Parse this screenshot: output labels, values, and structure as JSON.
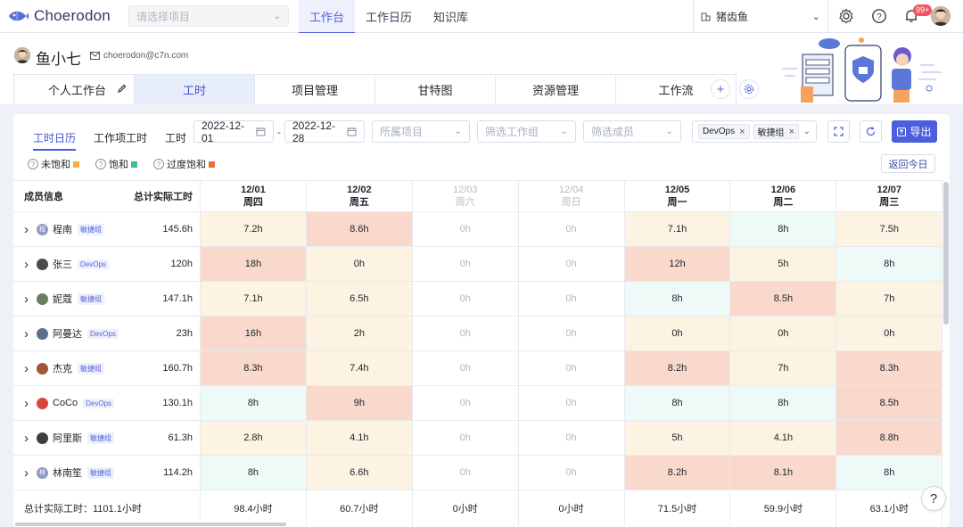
{
  "app": {
    "name": "Choerodon"
  },
  "topnav": {
    "project_placeholder": "请选择项目",
    "tabs": [
      {
        "label": "工作台"
      },
      {
        "label": "工作日历"
      },
      {
        "label": "知识库"
      }
    ],
    "org_name": "猪齿鱼",
    "notification_count": "99+"
  },
  "user": {
    "name": "鱼小七",
    "email": "choerodon@c7n.com"
  },
  "workspace_tabs": [
    {
      "label": "个人工作台"
    },
    {
      "label": "工时"
    },
    {
      "label": "项目管理"
    },
    {
      "label": "甘特图"
    },
    {
      "label": "资源管理"
    },
    {
      "label": "工作流"
    }
  ],
  "subtabs": [
    {
      "label": "工时日历"
    },
    {
      "label": "工作项工时"
    },
    {
      "label": "工时"
    }
  ],
  "filters": {
    "start_date": "2022-12-01",
    "end_date": "2022-12-28",
    "project_placeholder": "所属项目",
    "group_placeholder": "筛选工作组",
    "member_placeholder": "筛选成员",
    "tags": [
      "DevOps",
      "敏捷组"
    ],
    "export_label": "导出"
  },
  "legend": [
    {
      "label": "未饱和",
      "color": "#f7b338"
    },
    {
      "label": "饱和",
      "color": "#3fbf8e"
    },
    {
      "label": "过度饱和",
      "color": "#f26b3a"
    }
  ],
  "today_label": "返回今日",
  "table": {
    "info_header": "成员信息",
    "total_header": "总计实际工时",
    "days": [
      {
        "date": "12/01",
        "weekday": "周四",
        "weekend": false
      },
      {
        "date": "12/02",
        "weekday": "周五",
        "weekend": false
      },
      {
        "date": "12/03",
        "weekday": "周六",
        "weekend": true
      },
      {
        "date": "12/04",
        "weekday": "周日",
        "weekend": true
      },
      {
        "date": "12/05",
        "weekday": "周一",
        "weekend": false
      },
      {
        "date": "12/06",
        "weekday": "周二",
        "weekend": false
      },
      {
        "date": "12/07",
        "weekday": "周三",
        "weekend": false
      }
    ],
    "rows": [
      {
        "name": "程南",
        "team": "敏捷组",
        "total": "145.6h",
        "avatar_color": "#8e99c8",
        "avatar_char": "程",
        "cells": [
          [
            "7.2h",
            "under"
          ],
          [
            "8.6h",
            "over"
          ],
          [
            "0h",
            "zero"
          ],
          [
            "0h",
            "zero"
          ],
          [
            "7.1h",
            "under"
          ],
          [
            "8h",
            "sat"
          ],
          [
            "7.5h",
            "under"
          ]
        ]
      },
      {
        "name": "张三",
        "team": "DevOps",
        "total": "120h",
        "avatar_color": "#4a4a4a",
        "avatar_char": "",
        "cells": [
          [
            "18h",
            "over"
          ],
          [
            "0h",
            "under"
          ],
          [
            "0h",
            "zero"
          ],
          [
            "0h",
            "zero"
          ],
          [
            "12h",
            "over"
          ],
          [
            "5h",
            "under"
          ],
          [
            "8h",
            "sat"
          ]
        ]
      },
      {
        "name": "妮蔻",
        "team": "敏捷组",
        "total": "147.1h",
        "avatar_color": "#6b7d5a",
        "avatar_char": "",
        "cells": [
          [
            "7.1h",
            "under"
          ],
          [
            "6.5h",
            "under"
          ],
          [
            "0h",
            "zero"
          ],
          [
            "0h",
            "zero"
          ],
          [
            "8h",
            "sat"
          ],
          [
            "8.5h",
            "over"
          ],
          [
            "7h",
            "under"
          ]
        ]
      },
      {
        "name": "阿曼达",
        "team": "DevOps",
        "total": "23h",
        "avatar_color": "#5c6f8e",
        "avatar_char": "",
        "cells": [
          [
            "16h",
            "over"
          ],
          [
            "2h",
            "under"
          ],
          [
            "0h",
            "zero"
          ],
          [
            "0h",
            "zero"
          ],
          [
            "0h",
            "under"
          ],
          [
            "0h",
            "under"
          ],
          [
            "0h",
            "under"
          ]
        ]
      },
      {
        "name": "杰克",
        "team": "敏捷组",
        "total": "160.7h",
        "avatar_color": "#a0553a",
        "avatar_char": "",
        "cells": [
          [
            "8.3h",
            "over"
          ],
          [
            "7.4h",
            "under"
          ],
          [
            "0h",
            "zero"
          ],
          [
            "0h",
            "zero"
          ],
          [
            "8.2h",
            "over"
          ],
          [
            "7h",
            "under"
          ],
          [
            "8.3h",
            "over"
          ]
        ]
      },
      {
        "name": "CoCo",
        "team": "DevOps",
        "total": "130.1h",
        "avatar_color": "#d6483c",
        "avatar_char": "",
        "cells": [
          [
            "8h",
            "sat"
          ],
          [
            "9h",
            "over"
          ],
          [
            "0h",
            "zero"
          ],
          [
            "0h",
            "zero"
          ],
          [
            "8h",
            "sat"
          ],
          [
            "8h",
            "sat"
          ],
          [
            "8.5h",
            "over"
          ]
        ]
      },
      {
        "name": "阿里斯",
        "team": "敏捷组",
        "total": "61.3h",
        "avatar_color": "#3d3d3d",
        "avatar_char": "",
        "cells": [
          [
            "2.8h",
            "under"
          ],
          [
            "4.1h",
            "under"
          ],
          [
            "0h",
            "zero"
          ],
          [
            "0h",
            "zero"
          ],
          [
            "5h",
            "under"
          ],
          [
            "4.1h",
            "under"
          ],
          [
            "8.8h",
            "over"
          ]
        ]
      },
      {
        "name": "林南笙",
        "team": "敏捷组",
        "total": "114.2h",
        "avatar_color": "#8e99c8",
        "avatar_char": "林",
        "cells": [
          [
            "8h",
            "sat"
          ],
          [
            "6.6h",
            "under"
          ],
          [
            "0h",
            "zero"
          ],
          [
            "0h",
            "zero"
          ],
          [
            "8.2h",
            "over"
          ],
          [
            "8.1h",
            "over"
          ],
          [
            "8h",
            "sat"
          ]
        ]
      }
    ],
    "footer_label": "总计实际工时：1101.1小时",
    "footer_totals": [
      "98.4小时",
      "60.7小时",
      "0小时",
      "0小时",
      "71.5小时",
      "59.9小时",
      "63.1小时"
    ]
  }
}
